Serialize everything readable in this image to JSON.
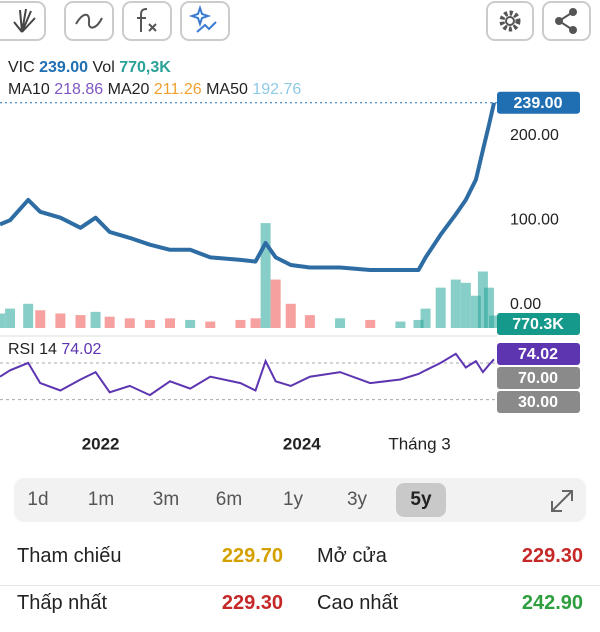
{
  "header": {
    "price": "239.00",
    "vol_label": "Vol",
    "vol": "770,3K",
    "indicators": [
      {
        "name": "MA10",
        "value": "218.86",
        "color": "#7e57c2"
      },
      {
        "name": "MA20",
        "value": "211.26",
        "color": "#f0a030"
      },
      {
        "name": "MA50",
        "value": "192.76",
        "color": "#8ecae6"
      }
    ]
  },
  "chart_data": {
    "type": "line",
    "x": [
      2021.0,
      2021.1,
      2021.28,
      2021.4,
      2021.6,
      2021.8,
      2021.95,
      2022.09,
      2022.29,
      2022.49,
      2022.69,
      2022.89,
      2023.09,
      2023.39,
      2023.54,
      2023.64,
      2023.74,
      2023.89,
      2024.08,
      2024.38,
      2024.68,
      2024.98,
      2025.16,
      2025.23,
      2025.38,
      2025.53,
      2025.63,
      2025.73,
      2025.8,
      2025.86,
      2025.91
    ],
    "xlim": [
      2021,
      2025.93
    ],
    "xticks": [
      {
        "value": 2022,
        "label": "2022"
      },
      {
        "value": 2024,
        "label": "2024"
      },
      {
        "value": 2025.17,
        "label": "Tháng 3"
      }
    ],
    "ylim": [
      -30,
      266
    ],
    "yticks": [
      {
        "value": 0,
        "label": "0.00"
      },
      {
        "value": 100,
        "label": "100.00"
      },
      {
        "value": 200,
        "label": "200.00"
      }
    ],
    "series": [
      {
        "name": "VIC",
        "color": "#2e6da4",
        "values": [
          95,
          100,
          124,
          110,
          103,
          91,
          103,
          86,
          79,
          71,
          65,
          65,
          56,
          53,
          51,
          73,
          56,
          47,
          44,
          44,
          41,
          41,
          41,
          56,
          83,
          107,
          124,
          148,
          183,
          213,
          239
        ]
      }
    ],
    "volume": {
      "values": [
        900,
        1200,
        1500,
        1100,
        900,
        800,
        1000,
        700,
        600,
        500,
        600,
        500,
        400,
        500,
        600,
        6500,
        3000,
        1500,
        800,
        600,
        500,
        400,
        500,
        1200,
        2500,
        3000,
        2800,
        2000,
        3500,
        2500,
        770.3
      ],
      "ylim": [
        0,
        7000
      ],
      "tag": "770.3K",
      "up_color": "#26a69a",
      "down_color": "#ef5350",
      "tag_color": "#14998a"
    },
    "rsi": {
      "label": "RSI 14",
      "color": "#5e35b1",
      "ylim": [
        10,
        95
      ],
      "values": [
        55,
        62,
        70,
        48,
        40,
        52,
        60,
        38,
        45,
        35,
        50,
        42,
        55,
        48,
        40,
        72,
        50,
        45,
        55,
        60,
        48,
        52,
        58,
        62,
        70,
        80,
        65,
        72,
        60,
        68,
        74.02
      ],
      "yticks": [
        {
          "value": 70,
          "label": "70.00"
        },
        {
          "value": 30,
          "label": "30.00"
        }
      ]
    }
  },
  "ranges": {
    "options": [
      "1d",
      "1m",
      "3m",
      "6m",
      "1y",
      "3y",
      "5y"
    ],
    "selected": 6
  },
  "stats": [
    [
      {
        "label": "Tham chiếu",
        "value": "229.70",
        "color": "#d4a000"
      },
      {
        "label": "Mở cửa",
        "value": "229.30",
        "color": "#c62828"
      }
    ],
    [
      {
        "label": "Thấp nhất",
        "value": "229.30",
        "color": "#c62828"
      },
      {
        "label": "Cao nhất",
        "value": "242.90",
        "color": "#2e9e3e"
      }
    ]
  ]
}
